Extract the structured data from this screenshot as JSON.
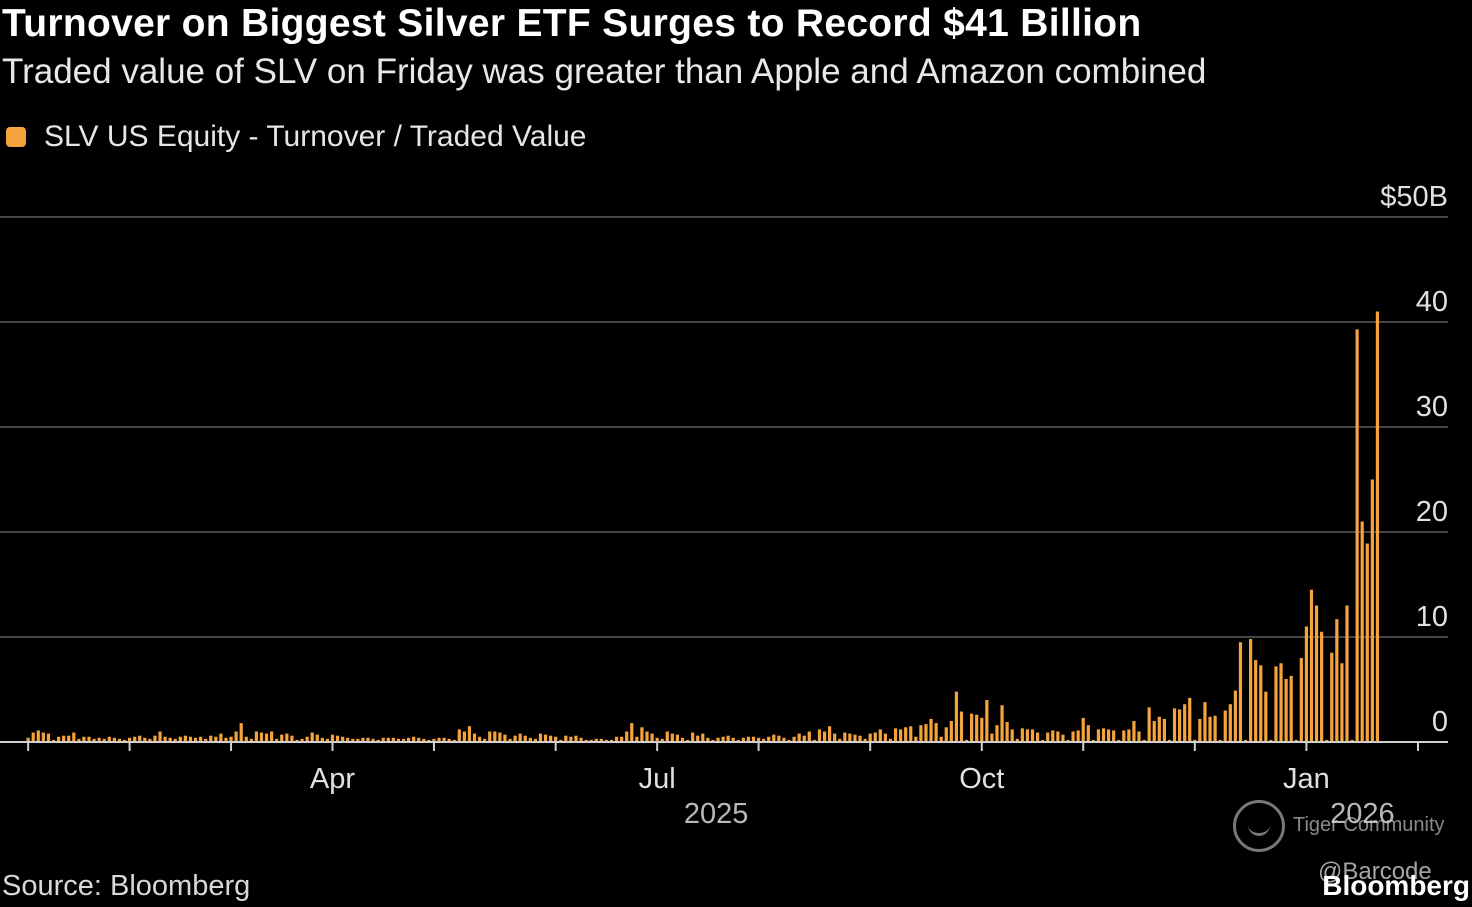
{
  "header": {
    "title": "Turnover on Biggest Silver ETF Surges to Record $41 Billion",
    "subtitle": "Traded value of SLV on Friday was greater than Apple and Amazon combined"
  },
  "colors": {
    "bar": "#f5a33c",
    "grid": "#5c5c5c",
    "axis": "#d0d0d0",
    "background": "#000000"
  },
  "chart_data": {
    "type": "bar",
    "title": "Turnover on Biggest Silver ETF Surges to Record $41 Billion",
    "subtitle": "Traded value of SLV on Friday was greater than Apple and Amazon combined",
    "legend": "SLV US Equity - Turnover / Traded Value",
    "legend_position": "top-left",
    "xlabel": "",
    "ylabel": "",
    "unit": "USD billions",
    "ylim": [
      0,
      50
    ],
    "grid": true,
    "y_ticks": [
      "$50B",
      "40",
      "30",
      "20",
      "10",
      "0"
    ],
    "y_tick_values": [
      50,
      40,
      30,
      20,
      10,
      0
    ],
    "x_month_labels": [
      "Apr",
      "Jul",
      "Oct",
      "Jan"
    ],
    "x_month_positions": [
      60,
      124,
      188,
      252
    ],
    "x_year_labels": [
      "2025",
      "2026"
    ],
    "x_year_positions": [
      124,
      252
    ],
    "x_minor_tick_positions": [
      0,
      20,
      40,
      60,
      80,
      104,
      124,
      144,
      166,
      188,
      208,
      230,
      252,
      274
    ],
    "x_range": [
      -2,
      274
    ],
    "series": [
      {
        "name": "SLV US Equity - Turnover / Traded Value",
        "values": [
          0.4,
          0.9,
          1.1,
          0.9,
          0.8,
          0.2,
          0.5,
          0.6,
          0.6,
          0.9,
          0.3,
          0.5,
          0.5,
          0.3,
          0.4,
          0.3,
          0.5,
          0.4,
          0.3,
          0.2,
          0.4,
          0.5,
          0.6,
          0.4,
          0.3,
          0.6,
          1.0,
          0.5,
          0.4,
          0.3,
          0.5,
          0.6,
          0.5,
          0.4,
          0.5,
          0.3,
          0.6,
          0.5,
          0.8,
          0.4,
          0.5,
          1.0,
          1.8,
          0.5,
          0.3,
          1.0,
          0.9,
          0.8,
          1.0,
          0.3,
          0.7,
          0.8,
          0.6,
          0.2,
          0.3,
          0.5,
          0.9,
          0.7,
          0.4,
          0.3,
          0.7,
          0.6,
          0.5,
          0.4,
          0.3,
          0.3,
          0.4,
          0.4,
          0.3,
          0.2,
          0.4,
          0.4,
          0.4,
          0.3,
          0.3,
          0.4,
          0.5,
          0.4,
          0.3,
          0.2,
          0.3,
          0.4,
          0.4,
          0.3,
          0.2,
          1.2,
          1.0,
          1.5,
          0.8,
          0.5,
          0.3,
          1.0,
          1.0,
          0.9,
          0.7,
          0.3,
          0.6,
          0.8,
          0.6,
          0.4,
          0.3,
          0.8,
          0.7,
          0.6,
          0.5,
          0.2,
          0.6,
          0.5,
          0.6,
          0.4,
          0.2,
          0.2,
          0.3,
          0.3,
          0.2,
          0.2,
          0.5,
          0.5,
          1.0,
          1.8,
          0.5,
          1.4,
          1.0,
          0.8,
          0.4,
          0.3,
          1.0,
          0.8,
          0.7,
          0.4,
          0.2,
          0.9,
          0.6,
          0.8,
          0.4,
          0.2,
          0.4,
          0.5,
          0.6,
          0.4,
          0.2,
          0.4,
          0.5,
          0.5,
          0.4,
          0.3,
          0.5,
          0.7,
          0.6,
          0.4,
          0.2,
          0.5,
          0.8,
          0.6,
          1.0,
          0.2,
          1.2,
          1.0,
          1.5,
          0.8,
          0.3,
          0.9,
          0.8,
          0.7,
          0.6,
          0.3,
          0.8,
          0.9,
          1.2,
          0.8,
          0.3,
          1.3,
          1.2,
          1.4,
          1.5,
          0.5,
          1.6,
          1.7,
          2.2,
          1.8,
          0.5,
          1.4,
          2.0,
          4.8,
          2.9,
          0.2,
          2.7,
          2.6,
          2.3,
          4.0,
          0.8,
          1.6,
          3.5,
          1.9,
          1.2,
          0.3,
          1.3,
          1.2,
          1.2,
          0.9,
          0.2,
          0.9,
          1.1,
          1.0,
          0.7,
          0.2,
          1.0,
          1.1,
          2.3,
          1.6,
          0.2,
          1.2,
          1.3,
          1.2,
          1.1,
          0.2,
          1.1,
          1.2,
          2.0,
          1.0,
          0.2,
          3.3,
          2.0,
          2.4,
          2.2,
          0.2,
          3.2,
          3.1,
          3.6,
          4.2,
          0.2,
          2.2,
          3.8,
          2.4,
          2.5,
          0.2,
          3.0,
          3.6,
          4.9,
          9.5,
          0.2,
          9.8,
          7.8,
          7.3,
          4.8,
          0.2,
          7.2,
          7.5,
          6.0,
          6.3,
          0.2,
          8.0,
          11.0,
          14.5,
          13.0,
          10.5,
          0.2,
          8.5,
          11.7,
          7.5,
          13.0,
          0.2,
          39.3,
          21.0,
          18.9,
          25.0,
          41.0
        ]
      }
    ]
  },
  "legend": {
    "label": "SLV US Equity - Turnover / Traded Value"
  },
  "footer": {
    "source": "Source: Bloomberg",
    "watermark_name": "Tiger Community",
    "watermark_handle": "@Barcode",
    "brand": "Bloomberg"
  }
}
